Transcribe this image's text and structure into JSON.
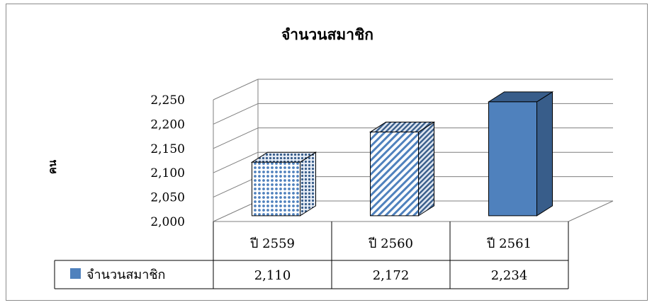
{
  "chart_data": {
    "type": "bar",
    "title": "จำนวนสมาชิก",
    "ylabel": "คน",
    "xlabel": "",
    "categories": [
      "ปี 2559",
      "ปี 2560",
      "ปี 2561"
    ],
    "series": [
      {
        "name": "จำนวนสมาชิก",
        "values": [
          2110,
          2172,
          2234
        ],
        "value_labels": [
          "2,110",
          "2,172",
          "2,234"
        ]
      }
    ],
    "ylim": [
      2000,
      2250
    ],
    "yticks": [
      "2,000",
      "2,050",
      "2,100",
      "2,150",
      "2,200",
      "2,250"
    ],
    "grid": true,
    "style": "3d-column with data table",
    "colors": {
      "bar": "#4f81bd",
      "bar_dark": "#385d8a",
      "grid": "#7f7f7f"
    },
    "legend_placement": "data-table"
  }
}
